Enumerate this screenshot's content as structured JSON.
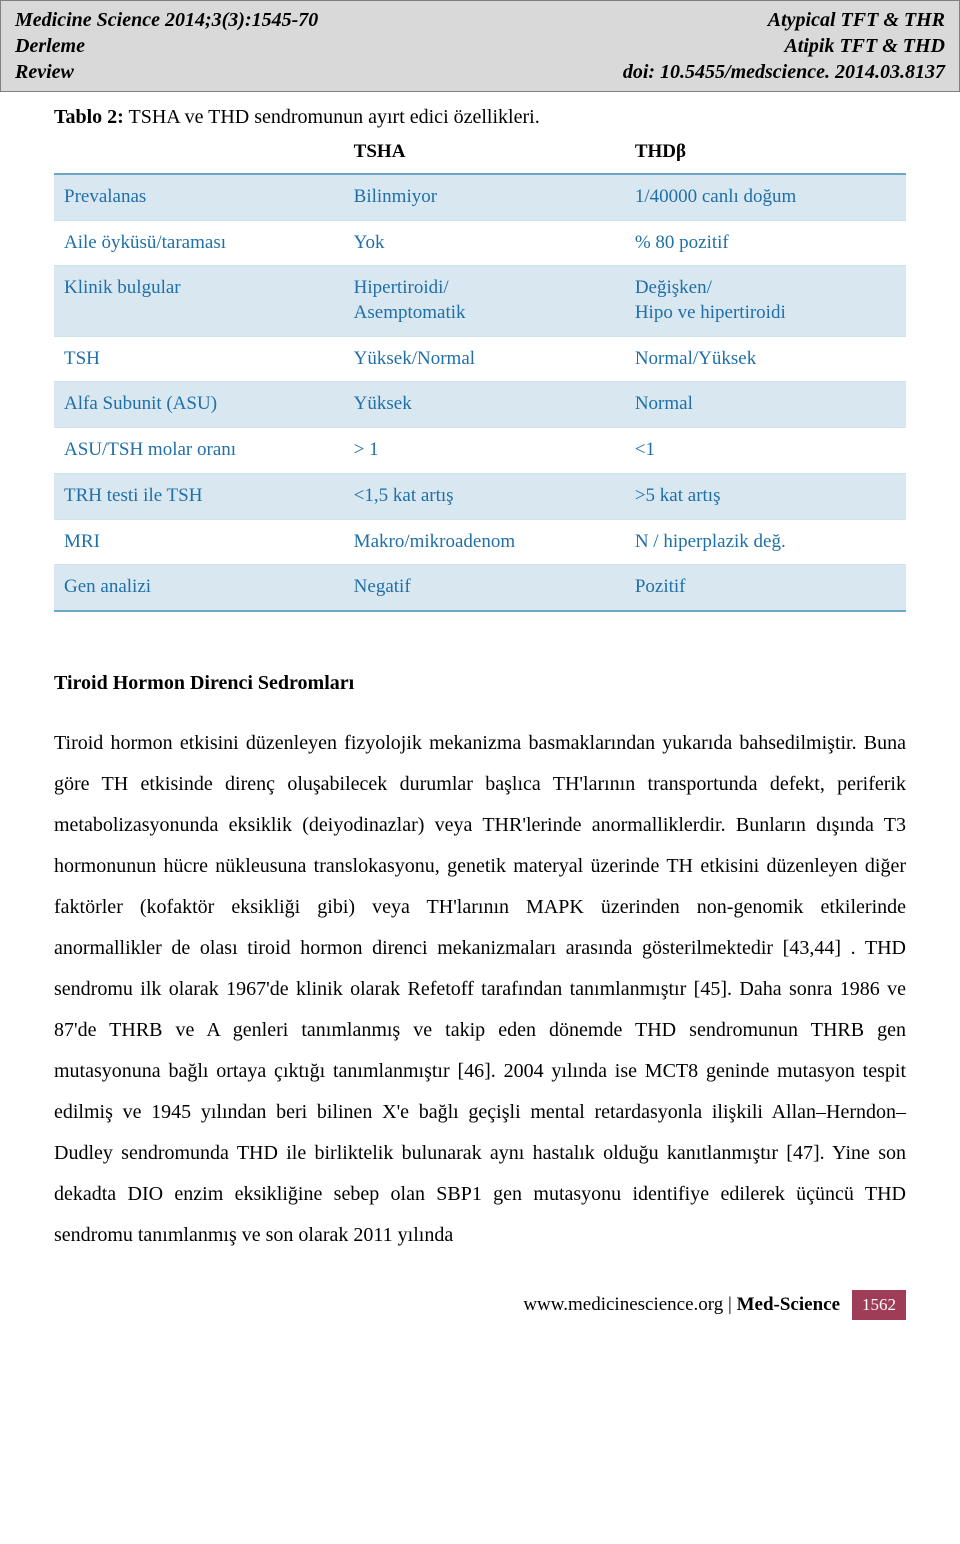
{
  "header": {
    "journal": "Medicine Science 2014;3(3):1545-70",
    "derleme": "Derleme",
    "review": "Review",
    "title_en": "Atypical TFT & THR",
    "title_tr": "Atipik TFT & THD",
    "doi": "doi: 10.5455/medscience. 2014.03.8137"
  },
  "caption": {
    "label": "Tablo 2:",
    "text": " TSHA ve THD sendromunun ayırt edici özellikleri."
  },
  "table": {
    "columns": [
      "",
      "TSHA",
      "THDβ"
    ],
    "rows": [
      {
        "shaded": true,
        "cells": [
          "Prevalanas",
          "Bilinmiyor",
          "1/40000 canlı doğum"
        ]
      },
      {
        "shaded": false,
        "cells": [
          "Aile öyküsü/taraması",
          "Yok",
          "% 80 pozitif"
        ]
      },
      {
        "shaded": true,
        "cells": [
          "Klinik bulgular",
          "Hipertiroidi/\nAsemptomatik",
          "Değişken/\nHipo ve hipertiroidi"
        ]
      },
      {
        "shaded": false,
        "cells": [
          "TSH",
          "Yüksek/Normal",
          "Normal/Yüksek"
        ]
      },
      {
        "shaded": true,
        "cells": [
          "Alfa Subunit (ASU)",
          "Yüksek",
          "Normal"
        ]
      },
      {
        "shaded": false,
        "cells": [
          "ASU/TSH molar oranı",
          "> 1",
          "<1"
        ]
      },
      {
        "shaded": true,
        "cells": [
          "TRH testi ile TSH",
          "<1,5 kat artış",
          ">5 kat artış"
        ]
      },
      {
        "shaded": false,
        "cells": [
          "MRI",
          "Makro/mikroadenom",
          "N / hiperplazik değ."
        ]
      },
      {
        "shaded": true,
        "cells": [
          "Gen analizi",
          "Negatif",
          "Pozitif"
        ]
      }
    ],
    "colors": {
      "header_border": "#6ea6c7",
      "row_border": "#cfe3ef",
      "shaded_bg": "#d9e7f0",
      "text": "#1f6fa8"
    }
  },
  "section": {
    "title": "Tiroid Hormon Direnci Sedromları",
    "paragraph": "Tiroid hormon etkisini düzenleyen fizyolojik mekanizma basmaklarından yukarıda bahsedilmiştir. Buna göre TH etkisinde direnç oluşabilecek durumlar başlıca TH'larının transportunda defekt, periferik metabolizasyonunda eksiklik (deiyodinazlar) veya THR'lerinde anormalliklerdir. Bunların dışında T3 hormonunun hücre nükleusuna translokasyonu, genetik materyal üzerinde TH etkisini düzenleyen diğer faktörler (kofaktör eksikliği gibi) veya TH'larının MAPK üzerinden non-genomik etkilerinde anormallikler de olası tiroid hormon direnci mekanizmaları arasında gösterilmektedir [43,44] . THD sendromu ilk olarak 1967'de klinik olarak Refetoff tarafından tanımlanmıştır [45]. Daha sonra 1986 ve 87'de THRB ve A genleri tanımlanmış ve takip eden dönemde THD sendromunun THRB gen mutasyonuna bağlı ortaya çıktığı tanımlanmıştır [46]. 2004 yılında ise MCT8 geninde mutasyon tespit edilmiş ve 1945 yılından beri bilinen X'e bağlı geçişli mental retardasyonla ilişkili Allan–Herndon–Dudley sendromunda THD ile birliktelik bulunarak aynı hastalık olduğu kanıtlanmıştır [47]. Yine son dekadta DIO enzim eksikliğine sebep olan SBP1 gen mutasyonu identifiye edilerek üçüncü THD sendromu tanımlanmış ve son olarak 2011 yılında"
  },
  "footer": {
    "site": "www.medicinescience.org",
    "sep": " | ",
    "brand": "Med-Science",
    "page": "1562",
    "page_bg": "#9f3c58"
  }
}
